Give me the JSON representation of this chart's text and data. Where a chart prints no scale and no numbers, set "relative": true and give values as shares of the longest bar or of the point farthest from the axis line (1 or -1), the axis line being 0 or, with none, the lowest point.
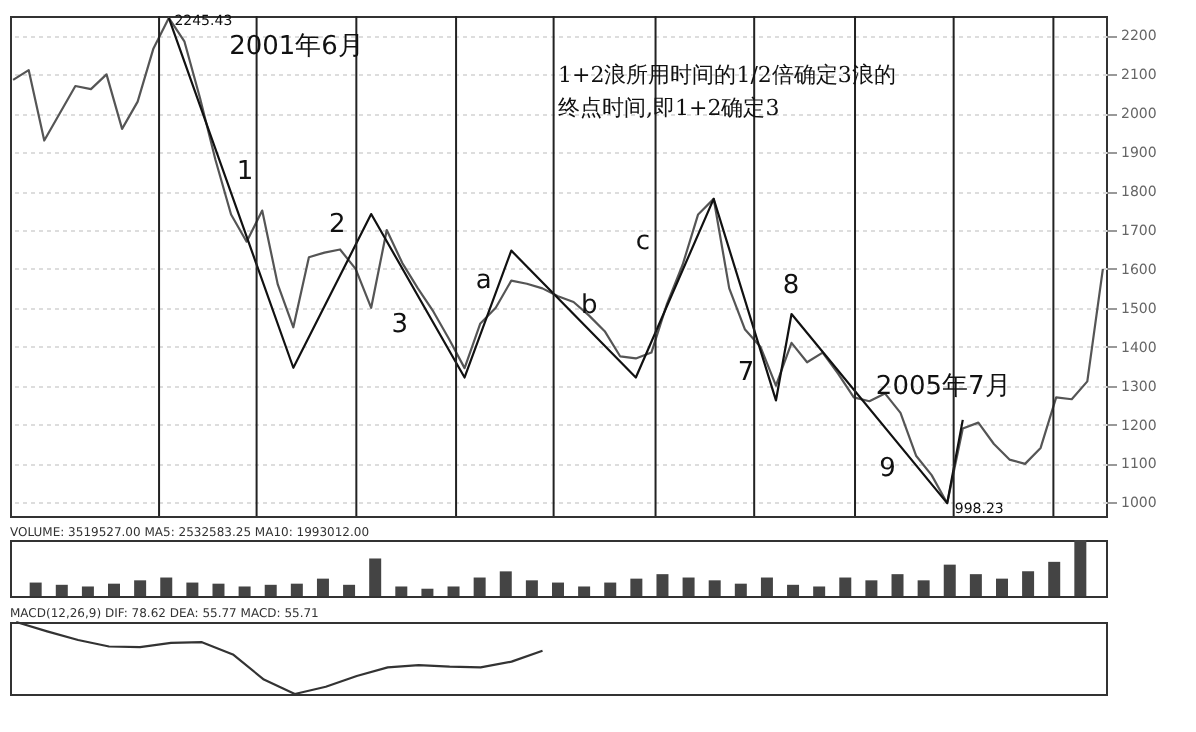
{
  "chart_data": [
    {
      "type": "line",
      "categories": [
        null,
        null,
        null,
        null,
        null,
        null,
        null,
        null,
        null,
        null,
        null,
        null,
        null,
        null,
        null,
        null,
        null,
        null,
        null,
        null,
        null,
        null,
        null,
        null,
        null,
        null,
        null,
        null,
        null,
        null,
        null,
        null,
        null,
        null,
        null,
        null,
        null,
        null,
        null,
        null,
        null,
        null,
        null,
        null,
        null,
        null,
        null,
        null,
        null,
        null,
        null,
        null,
        null,
        null,
        null,
        null,
        null,
        null,
        null,
        null,
        null,
        null,
        null,
        null,
        null,
        null,
        null,
        null,
        null,
        null,
        null
      ],
      "series": [
        {
          "color": "#555555",
          "values": [
            2086,
            2111,
            1930,
            2000,
            2070,
            2062,
            2100,
            1960,
            2030,
            2165,
            2245,
            2185,
            2040,
            1880,
            1740,
            1670,
            1750,
            1560,
            1450,
            1630,
            1642,
            1650,
            1600,
            1500,
            1700,
            1615,
            1550,
            1490,
            1420,
            1345,
            1459,
            1500,
            1570,
            1562,
            1550,
            1530,
            1515,
            1480,
            1440,
            1375,
            1370,
            1385,
            1510,
            1610,
            1740,
            1780,
            1550,
            1445,
            1400,
            1300,
            1410,
            1360,
            1385,
            1330,
            1270,
            1260,
            1280,
            1230,
            1120,
            1070,
            998,
            1190,
            1205,
            1150,
            1110,
            1099,
            1140,
            1270,
            1265,
            1311,
            1600
          ]
        },
        {
          "color": "#111111",
          "values": [
            null,
            null,
            null,
            null,
            null,
            null,
            null,
            null,
            null,
            null,
            2245,
            null,
            null,
            null,
            null,
            null,
            null,
            null,
            1346,
            null,
            null,
            null,
            null,
            1741,
            null,
            null,
            null,
            null,
            null,
            1321,
            null,
            null,
            1647,
            null,
            null,
            null,
            null,
            null,
            null,
            null,
            1321,
            null,
            null,
            null,
            null,
            1780,
            null,
            null,
            null,
            1262,
            1484,
            null,
            null,
            null,
            null,
            null,
            null,
            null,
            null,
            null,
            998,
            1212,
            null,
            null,
            null,
            null,
            null,
            null,
            null,
            null,
            null
          ]
        }
      ],
      "ylim": [
        965,
        2250
      ],
      "yticks": [
        1000,
        1100,
        1200,
        1300,
        1400,
        1500,
        1600,
        1700,
        1800,
        1900,
        2000,
        2100,
        2200
      ],
      "grid": true,
      "tick_labels": "y",
      "annotations": [
        "1+2浪所用时间的1/2倍确定3浪的",
        "终点时间,即1+2确定3",
        "1",
        "2",
        "3",
        "a",
        "b",
        "c",
        "7",
        "8",
        "9",
        "2001年6月",
        "2005年7月",
        "2245.43",
        "998.23"
      ]
    },
    {
      "type": "bar",
      "relative": true,
      "tick_labels": false,
      "title": "VOLUME: 3519527.00 MA5: 2532583.25 MA10: 1993012.00",
      "color": "#444444",
      "categories": [
        null,
        null,
        null,
        null,
        null,
        null,
        null,
        null,
        null,
        null,
        null,
        null,
        null,
        null,
        null,
        null,
        null,
        null,
        null,
        null,
        null,
        null,
        null,
        null,
        null,
        null,
        null,
        null,
        null,
        null,
        null,
        null,
        null,
        null,
        null,
        null,
        null,
        null,
        null,
        null,
        null
      ],
      "values": [
        0.24,
        0.2,
        0.17,
        0.22,
        0.28,
        0.33,
        0.24,
        0.22,
        0.17,
        0.2,
        0.22,
        0.31,
        0.2,
        0.67,
        0.17,
        0.13,
        0.17,
        0.33,
        0.44,
        0.28,
        0.24,
        0.17,
        0.24,
        0.31,
        0.39,
        0.33,
        0.28,
        0.22,
        0.33,
        0.2,
        0.17,
        0.33,
        0.28,
        0.39,
        0.28,
        0.56,
        0.39,
        0.31,
        0.44,
        0.61,
        1
      ]
    },
    {
      "type": "line",
      "relative": true,
      "tick_labels": false,
      "title": "MACD(12,26,9) DIF: 78.62 DEA: 55.77 MACD: 55.71",
      "color": "#333333",
      "categories": [
        null,
        null,
        null,
        null,
        null,
        null,
        null,
        null,
        null,
        null,
        null,
        null,
        null,
        null,
        null,
        null,
        null,
        null,
        null,
        null,
        null,
        null,
        null,
        null,
        null,
        null,
        null,
        null,
        null,
        null,
        null,
        null,
        null,
        null,
        null,
        null
      ],
      "values": [
        1,
        0.87,
        0.75,
        0.66,
        0.65,
        0.71,
        0.72,
        0.55,
        0.2,
        0,
        0.1,
        0.25,
        0.37,
        0.4,
        0.38,
        0.37,
        0.45,
        0.6,
        null,
        null,
        null,
        null,
        null,
        null,
        null,
        null,
        null,
        null,
        null,
        null,
        null,
        null,
        null,
        null,
        null,
        null
      ]
    }
  ]
}
